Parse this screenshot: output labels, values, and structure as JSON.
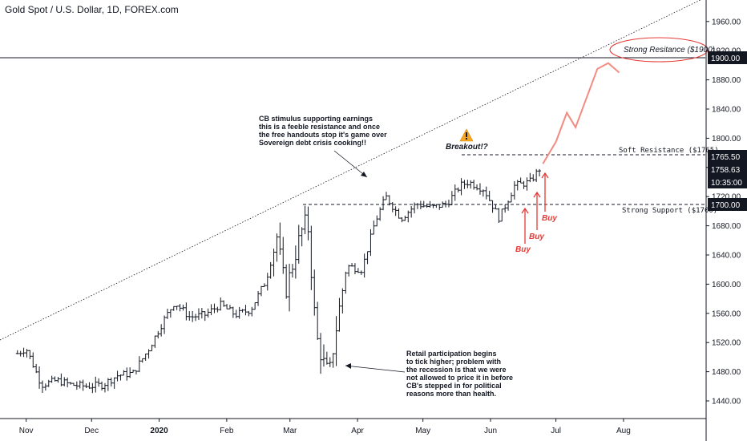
{
  "header": {
    "title": "Gold Spot / U.S. Dollar, 1D, FOREX.com"
  },
  "colors": {
    "candle": "#131722",
    "projection": "#f28b82",
    "buy_arrow": "#e53935",
    "ellipse": "#e53935",
    "warning": "#f5a623"
  },
  "annotations": {
    "cb_stimulus": [
      "CB stimulus supporting earnings",
      "this is a feeble resistance and once",
      "the free handouts stop it's game over",
      "Sovereign debt crisis cooking!!"
    ],
    "retail": [
      "Retail participation begins",
      "to tick higher; problem with",
      "the recession is that we were",
      "not allowed to price it in before",
      "CB's stepped in for political",
      "reasons more than health."
    ],
    "breakout": "Breakout!?",
    "buy_labels": [
      "Buy",
      "Buy",
      "Buy"
    ],
    "soft_resistance": "Soft Resistance  ($1765)",
    "strong_support": "Strong Support  ($1700)",
    "strong_resistance": "Strong Resitance ($1900)"
  },
  "chart_data": {
    "type": "ohlc",
    "title": "Gold Spot / U.S. Dollar, 1D, FOREX.com",
    "x_ticks": [
      "Nov",
      "Dec",
      "2020",
      "Feb",
      "Mar",
      "Apr",
      "May",
      "Jun",
      "Jul",
      "Aug"
    ],
    "y_ticks": [
      1440,
      1480,
      1520,
      1560,
      1600,
      1640,
      1680,
      1720,
      1760,
      1800,
      1840,
      1880,
      1920,
      1960
    ],
    "ylim": [
      1420,
      1980
    ],
    "price_labels": [
      "1900.00",
      "1765.50",
      "1758.63",
      "10:35:00",
      "1700.00"
    ],
    "levels": {
      "strong_resistance": 1900,
      "soft_resistance": 1765,
      "strong_support": 1700
    },
    "close_series": [
      {
        "date": "2019-10-28",
        "close": 1505
      },
      {
        "date": "2019-11-01",
        "close": 1512
      },
      {
        "date": "2019-11-08",
        "close": 1462
      },
      {
        "date": "2019-11-15",
        "close": 1468
      },
      {
        "date": "2019-11-22",
        "close": 1462
      },
      {
        "date": "2019-11-29",
        "close": 1460
      },
      {
        "date": "2019-12-06",
        "close": 1462
      },
      {
        "date": "2019-12-13",
        "close": 1475
      },
      {
        "date": "2019-12-20",
        "close": 1478
      },
      {
        "date": "2019-12-27",
        "close": 1510
      },
      {
        "date": "2020-01-03",
        "close": 1550
      },
      {
        "date": "2020-01-08",
        "close": 1575
      },
      {
        "date": "2020-01-15",
        "close": 1555
      },
      {
        "date": "2020-01-22",
        "close": 1558
      },
      {
        "date": "2020-01-29",
        "close": 1572
      },
      {
        "date": "2020-02-05",
        "close": 1558
      },
      {
        "date": "2020-02-12",
        "close": 1565
      },
      {
        "date": "2020-02-19",
        "close": 1605
      },
      {
        "date": "2020-02-24",
        "close": 1665
      },
      {
        "date": "2020-02-28",
        "close": 1590
      },
      {
        "date": "2020-03-06",
        "close": 1670
      },
      {
        "date": "2020-03-09",
        "close": 1690
      },
      {
        "date": "2020-03-13",
        "close": 1530
      },
      {
        "date": "2020-03-16",
        "close": 1495
      },
      {
        "date": "2020-03-19",
        "close": 1475
      },
      {
        "date": "2020-03-23",
        "close": 1555
      },
      {
        "date": "2020-03-27",
        "close": 1625
      },
      {
        "date": "2020-04-03",
        "close": 1620
      },
      {
        "date": "2020-04-09",
        "close": 1685
      },
      {
        "date": "2020-04-14",
        "close": 1720
      },
      {
        "date": "2020-04-21",
        "close": 1690
      },
      {
        "date": "2020-04-28",
        "close": 1710
      },
      {
        "date": "2020-05-05",
        "close": 1705
      },
      {
        "date": "2020-05-12",
        "close": 1710
      },
      {
        "date": "2020-05-18",
        "close": 1735
      },
      {
        "date": "2020-05-22",
        "close": 1740
      },
      {
        "date": "2020-05-29",
        "close": 1730
      },
      {
        "date": "2020-06-05",
        "close": 1690
      },
      {
        "date": "2020-06-12",
        "close": 1735
      },
      {
        "date": "2020-06-19",
        "close": 1740
      },
      {
        "date": "2020-06-24",
        "close": 1760
      }
    ],
    "projection": [
      {
        "date": "2020-06-25",
        "close": 1765
      },
      {
        "date": "2020-07-01",
        "close": 1795
      },
      {
        "date": "2020-07-06",
        "close": 1835
      },
      {
        "date": "2020-07-10",
        "close": 1815
      },
      {
        "date": "2020-07-20",
        "close": 1895
      },
      {
        "date": "2020-07-25",
        "close": 1903
      },
      {
        "date": "2020-07-30",
        "close": 1890
      }
    ]
  }
}
